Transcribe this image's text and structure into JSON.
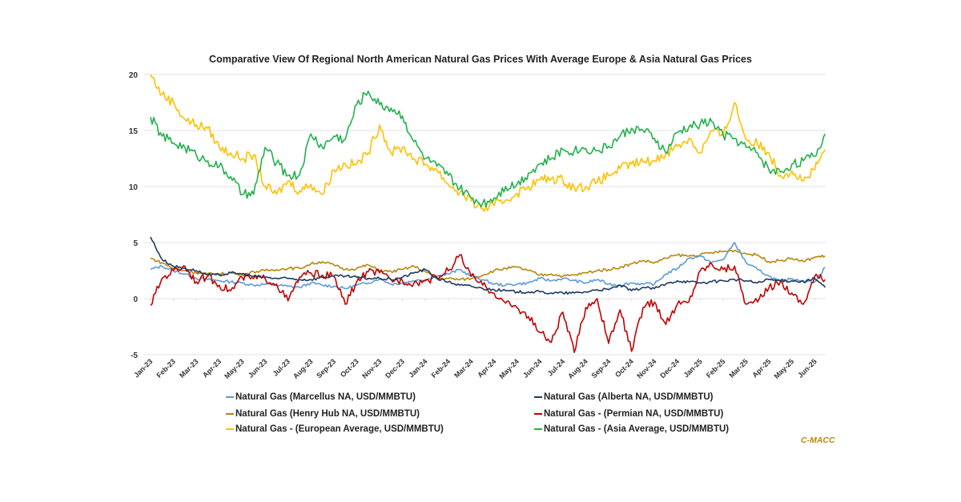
{
  "chart_data": {
    "type": "line",
    "title": "Comparative View Of Regional North American Natural Gas Prices With Average Europe & Asia Natural Gas Prices",
    "xlabel": "",
    "ylabel": "",
    "ylim": [
      -5,
      20
    ],
    "yticks": [
      "20",
      "15",
      "10",
      "5",
      "0",
      "-5"
    ],
    "ytick_values": [
      20,
      15,
      10,
      5,
      0,
      -5
    ],
    "grid": true,
    "legend_position": "bottom",
    "x_tick_labels": [
      "Jan-23",
      "Feb-23",
      "Mar-23",
      "Apr-23",
      "May-23",
      "Jun-23",
      "Jul-23",
      "Aug-23",
      "Sep-23",
      "Oct-23",
      "Nov-23",
      "Dec-23",
      "Jan-24",
      "Feb-24",
      "Mar-24",
      "Apr-24",
      "May-24",
      "Jun-24",
      "Jul-24",
      "Aug-24",
      "Sep-24",
      "Oct-24",
      "Nov-24",
      "Dec-24",
      "Jan-25",
      "Feb-25",
      "Mar-25",
      "Apr-25",
      "May-25",
      "Jun-25"
    ],
    "x_months_from_jan23": [
      0,
      0.5,
      1,
      1.5,
      2,
      2.5,
      3,
      3.5,
      4,
      4.5,
      5,
      5.5,
      6,
      6.5,
      7,
      7.5,
      8,
      8.5,
      9,
      9.5,
      10,
      10.5,
      11,
      11.5,
      12,
      12.5,
      13,
      13.5,
      14,
      14.5,
      15,
      15.5,
      16,
      16.5,
      17,
      17.5,
      18,
      18.5,
      19,
      19.5,
      20,
      20.5,
      21,
      21.5,
      22,
      22.5,
      23,
      23.5,
      24,
      24.5,
      25,
      25.5,
      26,
      26.5,
      27,
      27.5,
      28,
      28.5,
      29,
      29.45
    ],
    "series": [
      {
        "name": "Natural Gas (Marcellus NA, USD/MMBTU)",
        "color": "#5b9bd5",
        "values": [
          2.6,
          2.9,
          2.5,
          2.2,
          1.8,
          1.7,
          1.6,
          1.5,
          1.4,
          1.2,
          1.3,
          1.2,
          1.1,
          1.0,
          1.4,
          1.2,
          1.1,
          0.9,
          1.2,
          1.4,
          1.8,
          1.3,
          1.4,
          1.6,
          1.7,
          2.0,
          2.2,
          2.6,
          2.0,
          1.7,
          1.3,
          1.2,
          1.3,
          1.4,
          1.8,
          1.6,
          1.8,
          1.6,
          1.4,
          1.7,
          1.3,
          1.2,
          1.4,
          1.3,
          1.3,
          2.2,
          2.7,
          3.6,
          3.8,
          3.2,
          3.5,
          5.0,
          3.2,
          2.6,
          2.0,
          1.5,
          1.8,
          1.6,
          1.5,
          2.8
        ]
      },
      {
        "name": "Natural Gas (Henry Hub NA, USD/MMBTU)",
        "color": "#b8860b",
        "values": [
          3.6,
          3.2,
          2.7,
          2.5,
          2.3,
          2.2,
          2.2,
          2.3,
          2.1,
          2.4,
          2.5,
          2.6,
          2.7,
          2.7,
          3.1,
          3.3,
          3.0,
          2.6,
          2.7,
          3.0,
          2.5,
          2.4,
          2.6,
          2.9,
          2.4,
          1.8,
          1.8,
          1.7,
          1.8,
          2.1,
          2.5,
          2.7,
          2.8,
          2.5,
          2.1,
          2.2,
          2.0,
          2.1,
          2.3,
          2.5,
          2.6,
          2.8,
          3.1,
          3.4,
          3.2,
          3.6,
          3.9,
          3.8,
          3.9,
          4.1,
          4.2,
          4.3,
          4.0,
          3.9,
          3.3,
          3.4,
          3.6,
          3.3,
          3.7,
          3.8
        ]
      },
      {
        "name": "Natural Gas - (European Average, USD/MMBTU)",
        "color": "#ffc000",
        "values": [
          20.0,
          18.2,
          17.5,
          16.0,
          15.5,
          15.2,
          13.5,
          13.0,
          12.5,
          12.8,
          10.0,
          9.3,
          10.5,
          9.6,
          10.2,
          9.3,
          11.5,
          12.0,
          12.0,
          13.0,
          15.5,
          13.0,
          13.5,
          12.5,
          12.0,
          11.5,
          10.2,
          9.5,
          8.7,
          8.0,
          8.3,
          8.8,
          9.4,
          10.0,
          10.6,
          10.7,
          10.6,
          9.9,
          10.0,
          10.4,
          11.0,
          11.6,
          12.0,
          12.2,
          12.3,
          13.0,
          13.6,
          14.3,
          13.0,
          15.0,
          14.5,
          17.5,
          14.2,
          13.8,
          13.0,
          11.0,
          11.4,
          10.5,
          11.5,
          13.3
        ]
      },
      {
        "name": "Natural Gas (Alberta NA, USD/MMBTU)",
        "color": "#1f3a5f",
        "values": [
          5.5,
          3.5,
          2.9,
          2.7,
          2.5,
          2.1,
          2.1,
          2.3,
          2.2,
          2.0,
          1.9,
          1.8,
          1.8,
          1.7,
          1.7,
          1.9,
          2.0,
          2.0,
          1.9,
          1.8,
          1.8,
          1.7,
          1.9,
          2.3,
          2.6,
          1.8,
          1.5,
          1.2,
          1.1,
          0.9,
          0.8,
          0.7,
          0.6,
          0.6,
          0.6,
          0.5,
          0.5,
          0.5,
          0.6,
          0.8,
          0.8,
          1.2,
          0.7,
          1.0,
          0.9,
          1.3,
          1.6,
          1.5,
          1.4,
          1.5,
          1.6,
          1.7,
          1.6,
          1.4,
          1.7,
          1.6,
          1.6,
          1.5,
          1.8,
          1.0
        ]
      },
      {
        "name": "Natural Gas - (Permian NA, USD/MMBTU)",
        "color": "#c00000",
        "values": [
          -0.6,
          1.8,
          2.5,
          2.9,
          1.5,
          2.0,
          1.2,
          0.7,
          1.9,
          1.8,
          1.8,
          1.3,
          -0.2,
          1.9,
          2.3,
          2.1,
          2.0,
          -0.5,
          1.5,
          2.4,
          2.3,
          1.7,
          1.6,
          1.4,
          1.6,
          1.9,
          2.5,
          3.9,
          2.0,
          1.2,
          0.5,
          -0.4,
          -0.8,
          -1.6,
          -3.0,
          -3.9,
          -1.2,
          -4.8,
          -0.8,
          0.0,
          -4.0,
          -1.0,
          -4.7,
          -0.8,
          -0.3,
          -2.3,
          -0.5,
          -0.3,
          2.5,
          3.1,
          2.6,
          2.9,
          -0.5,
          -0.3,
          1.0,
          1.5,
          0.5,
          -0.5,
          2.0,
          1.7
        ]
      },
      {
        "name": "Natural Gas - (Asia Average, USD/MMBTU)",
        "color": "#22b14c",
        "values": [
          16.2,
          14.5,
          13.9,
          13.5,
          12.8,
          12.3,
          11.8,
          10.9,
          9.3,
          9.3,
          13.5,
          12.1,
          11.0,
          11.0,
          14.7,
          13.5,
          14.5,
          14.2,
          17.3,
          18.5,
          17.3,
          17.0,
          16.3,
          14.0,
          12.5,
          11.8,
          11.0,
          9.8,
          9.0,
          8.5,
          9.0,
          10.0,
          10.2,
          11.2,
          12.0,
          12.5,
          13.3,
          13.2,
          13.4,
          13.2,
          13.6,
          14.5,
          15.2,
          15.0,
          14.3,
          13.0,
          14.8,
          15.3,
          15.6,
          15.8,
          14.6,
          14.3,
          13.5,
          13.0,
          11.5,
          11.3,
          12.0,
          12.3,
          12.7,
          14.7
        ]
      }
    ]
  },
  "credit": "C-MACC"
}
